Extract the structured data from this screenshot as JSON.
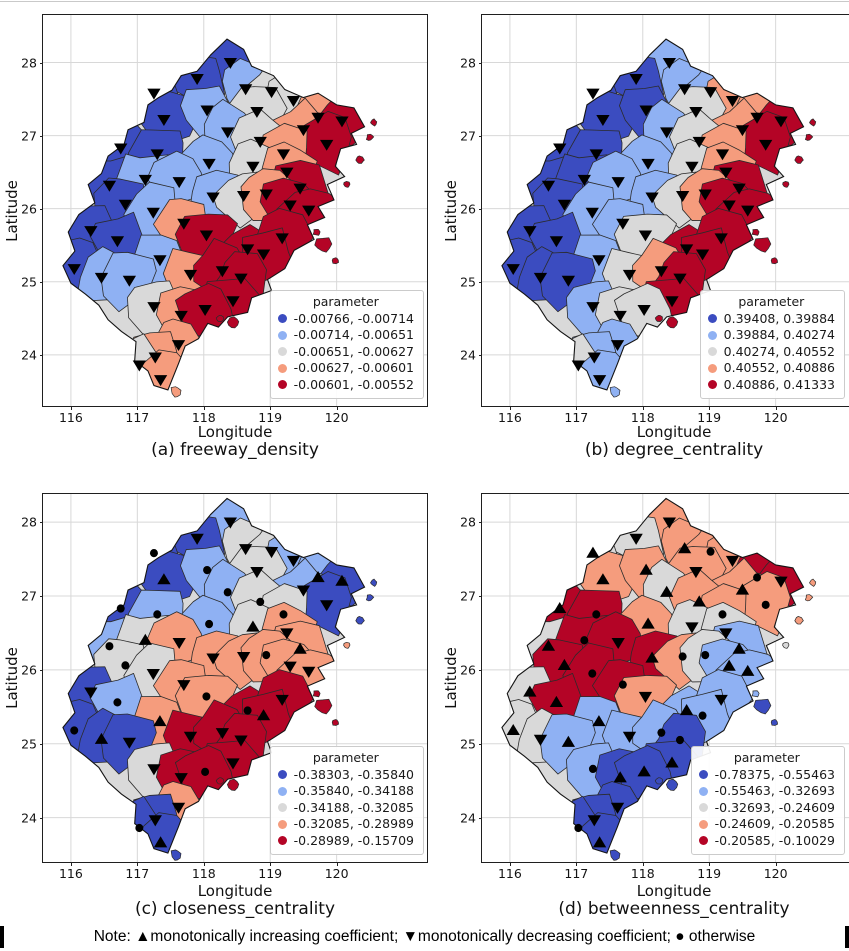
{
  "figure": {
    "xlabel": "Longitude",
    "ylabel": "Latitude",
    "xticks": [
      116,
      117,
      118,
      119,
      120
    ],
    "yticks": [
      28,
      27,
      26,
      25,
      24
    ],
    "class_colors": [
      "#3b4cc0",
      "#8fb1f3",
      "#d9d9d9",
      "#f59c7d",
      "#b40426"
    ],
    "marker_color": "#000000",
    "grid_color": "#d8d8d8",
    "boundary_color": "#2b2b2b",
    "outline_color": "#141414",
    "note": "Note: ▲monotonically increasing coefficient; ▼monotonically decreasing coefficient; ● otherwise",
    "marker_legend": [
      {
        "glyph": "▲",
        "meaning": "monotonically increasing coefficient"
      },
      {
        "glyph": "▼",
        "meaning": "monotonically decreasing coefficient"
      },
      {
        "glyph": "●",
        "meaning": "otherwise"
      }
    ]
  },
  "map": {
    "outline": [
      [
        118.1,
        28.1
      ],
      [
        118.35,
        28.32
      ],
      [
        118.6,
        28.18
      ],
      [
        118.72,
        27.95
      ],
      [
        119.05,
        27.82
      ],
      [
        119.22,
        27.63
      ],
      [
        119.5,
        27.52
      ],
      [
        119.72,
        27.58
      ],
      [
        120.0,
        27.42
      ],
      [
        120.26,
        27.38
      ],
      [
        120.42,
        27.12
      ],
      [
        120.22,
        27.03
      ],
      [
        120.3,
        26.88
      ],
      [
        120.06,
        26.82
      ],
      [
        119.98,
        26.58
      ],
      [
        120.12,
        26.44
      ],
      [
        119.86,
        26.33
      ],
      [
        119.96,
        26.12
      ],
      [
        119.72,
        26.03
      ],
      [
        119.82,
        25.88
      ],
      [
        119.56,
        25.78
      ],
      [
        119.66,
        25.58
      ],
      [
        119.36,
        25.43
      ],
      [
        119.22,
        25.18
      ],
      [
        118.96,
        25.03
      ],
      [
        119.02,
        24.88
      ],
      [
        118.72,
        24.78
      ],
      [
        118.66,
        24.58
      ],
      [
        118.36,
        24.52
      ],
      [
        118.22,
        24.38
      ],
      [
        118.06,
        24.43
      ],
      [
        117.92,
        24.22
      ],
      [
        117.72,
        24.12
      ],
      [
        117.62,
        23.88
      ],
      [
        117.46,
        23.52
      ],
      [
        117.25,
        23.58
      ],
      [
        117.16,
        23.78
      ],
      [
        116.96,
        23.92
      ],
      [
        116.98,
        24.18
      ],
      [
        116.76,
        24.32
      ],
      [
        116.56,
        24.48
      ],
      [
        116.42,
        24.68
      ],
      [
        116.22,
        24.83
      ],
      [
        116.0,
        24.98
      ],
      [
        115.88,
        25.22
      ],
      [
        116.06,
        25.42
      ],
      [
        115.96,
        25.68
      ],
      [
        116.12,
        25.92
      ],
      [
        116.36,
        26.08
      ],
      [
        116.26,
        26.33
      ],
      [
        116.46,
        26.48
      ],
      [
        116.56,
        26.72
      ],
      [
        116.8,
        26.88
      ],
      [
        116.86,
        27.08
      ],
      [
        117.1,
        27.18
      ],
      [
        117.16,
        27.42
      ],
      [
        117.32,
        27.52
      ],
      [
        117.52,
        27.62
      ],
      [
        117.66,
        27.82
      ],
      [
        117.9,
        27.88
      ]
    ],
    "centroids": [
      [
        118.4,
        28.0
      ],
      [
        117.9,
        27.78
      ],
      [
        117.25,
        27.58
      ],
      [
        118.63,
        27.64
      ],
      [
        119.02,
        27.6
      ],
      [
        119.35,
        27.48
      ],
      [
        117.4,
        27.22
      ],
      [
        118.05,
        27.35
      ],
      [
        118.8,
        27.33
      ],
      [
        119.72,
        27.25
      ],
      [
        120.08,
        27.2
      ],
      [
        119.5,
        27.08
      ],
      [
        118.36,
        27.05
      ],
      [
        118.85,
        26.92
      ],
      [
        116.75,
        26.83
      ],
      [
        117.3,
        26.75
      ],
      [
        119.85,
        26.88
      ],
      [
        119.2,
        26.75
      ],
      [
        118.08,
        26.62
      ],
      [
        118.74,
        26.58
      ],
      [
        116.58,
        26.32
      ],
      [
        117.12,
        26.4
      ],
      [
        117.63,
        26.37
      ],
      [
        119.25,
        26.5
      ],
      [
        119.45,
        26.28
      ],
      [
        116.82,
        26.06
      ],
      [
        117.24,
        25.95
      ],
      [
        118.14,
        26.16
      ],
      [
        118.6,
        26.18
      ],
      [
        118.94,
        26.2
      ],
      [
        119.3,
        26.05
      ],
      [
        119.58,
        25.98
      ],
      [
        116.3,
        25.7
      ],
      [
        117.7,
        25.8
      ],
      [
        118.04,
        25.64
      ],
      [
        118.66,
        25.45
      ],
      [
        119.18,
        25.6
      ],
      [
        116.7,
        25.56
      ],
      [
        117.34,
        25.3
      ],
      [
        117.8,
        25.1
      ],
      [
        116.05,
        25.18
      ],
      [
        116.46,
        25.06
      ],
      [
        116.88,
        25.02
      ],
      [
        118.9,
        25.38
      ],
      [
        118.28,
        25.15
      ],
      [
        118.56,
        25.05
      ],
      [
        118.44,
        24.74
      ],
      [
        117.25,
        24.66
      ],
      [
        117.66,
        24.54
      ],
      [
        118.02,
        24.62
      ],
      [
        117.62,
        24.14
      ],
      [
        117.27,
        23.97
      ],
      [
        117.03,
        23.86
      ],
      [
        117.35,
        23.66
      ]
    ],
    "islands": [
      [
        119.8,
        25.5,
        0.1
      ],
      [
        120.35,
        26.66,
        0.055
      ],
      [
        120.5,
        26.98,
        0.045
      ],
      [
        118.45,
        24.44,
        0.075
      ],
      [
        118.24,
        24.5,
        0.045
      ],
      [
        117.58,
        23.5,
        0.065
      ],
      [
        119.98,
        25.28,
        0.04
      ],
      [
        120.15,
        26.33,
        0.04
      ],
      [
        119.7,
        25.68,
        0.045
      ],
      [
        120.56,
        27.18,
        0.04
      ]
    ]
  },
  "chart_data": [
    {
      "type": "choropleth_map",
      "id": "a",
      "title": "(a) freeway_density",
      "xlabel": "Longitude",
      "ylabel": "Latitude",
      "xticks": [
        116,
        117,
        118,
        119,
        120
      ],
      "yticks": [
        28,
        27,
        26,
        25,
        24
      ],
      "xlim": [
        115.58,
        121.36
      ],
      "ylim": [
        23.3,
        28.65
      ],
      "legend_title": "parameter",
      "classes": [
        {
          "label": "-0.00766, -0.00714",
          "color_index": 0
        },
        {
          "label": "-0.00714, -0.00651",
          "color_index": 1
        },
        {
          "label": "-0.00651, -0.00627",
          "color_index": 2
        },
        {
          "label": "-0.00627, -0.00601",
          "color_index": 3
        },
        {
          "label": "-0.00601, -0.00552",
          "color_index": 4
        }
      ],
      "region_class_index": [
        0,
        0,
        0,
        1,
        2,
        2,
        0,
        1,
        2,
        3,
        4,
        3,
        1,
        2,
        0,
        0,
        4,
        3,
        1,
        2,
        0,
        1,
        1,
        3,
        4,
        0,
        1,
        1,
        2,
        3,
        4,
        4,
        0,
        3,
        4,
        4,
        4,
        0,
        1,
        3,
        0,
        1,
        1,
        4,
        4,
        4,
        4,
        2,
        3,
        4,
        3,
        3,
        2,
        3
      ],
      "region_markers": "dddddddddddddddddddddddddddddddddddddddddddddddddddddd",
      "island_class_index": [
        4,
        4,
        4,
        4,
        4,
        3,
        4,
        4,
        4,
        4
      ]
    },
    {
      "type": "choropleth_map",
      "id": "b",
      "title": "(b) degree_centrality",
      "xlabel": "Longitude",
      "ylabel": "Latitude",
      "xticks": [
        116,
        117,
        118,
        119,
        120
      ],
      "yticks": [
        28,
        27,
        26,
        25,
        24
      ],
      "xlim": [
        115.58,
        121.36
      ],
      "ylim": [
        23.3,
        28.65
      ],
      "legend_title": "parameter",
      "classes": [
        {
          "label": "0.39408, 0.39884",
          "color_index": 0
        },
        {
          "label": "0.39884, 0.40274",
          "color_index": 1
        },
        {
          "label": "0.40274, 0.40552",
          "color_index": 2
        },
        {
          "label": "0.40552, 0.40886",
          "color_index": 3
        },
        {
          "label": "0.40886, 0.41333",
          "color_index": 4
        }
      ],
      "region_class_index": [
        1,
        0,
        0,
        1,
        1,
        3,
        0,
        0,
        2,
        3,
        4,
        3,
        1,
        2,
        0,
        0,
        4,
        3,
        1,
        2,
        0,
        0,
        1,
        3,
        4,
        0,
        1,
        1,
        2,
        3,
        4,
        4,
        0,
        1,
        2,
        4,
        4,
        0,
        1,
        2,
        0,
        0,
        0,
        4,
        3,
        4,
        4,
        1,
        2,
        2,
        1,
        1,
        2,
        1
      ],
      "region_markers": "dddddddddddddddddddddddddddddddddddddddddddddddddddddd",
      "island_class_index": [
        4,
        4,
        4,
        4,
        4,
        1,
        4,
        4,
        4,
        4
      ]
    },
    {
      "type": "choropleth_map",
      "id": "c",
      "title": "(c) closeness_centrality",
      "xlabel": "Longitude",
      "ylabel": "Latitude",
      "xticks": [
        116,
        117,
        118,
        119,
        120
      ],
      "yticks": [
        28,
        27,
        26,
        25,
        24
      ],
      "xlim": [
        115.58,
        121.36
      ],
      "ylim": [
        23.4,
        28.38
      ],
      "legend_title": "parameter",
      "classes": [
        {
          "label": "-0.38303, -0.35840",
          "color_index": 0
        },
        {
          "label": "-0.35840, -0.34188",
          "color_index": 1
        },
        {
          "label": "-0.34188, -0.32085",
          "color_index": 2
        },
        {
          "label": "-0.32085, -0.28989",
          "color_index": 3
        },
        {
          "label": "-0.28989, -0.15709",
          "color_index": 4
        }
      ],
      "region_class_index": [
        1,
        0,
        0,
        2,
        2,
        1,
        0,
        1,
        2,
        1,
        0,
        1,
        1,
        2,
        0,
        1,
        0,
        2,
        1,
        2,
        1,
        2,
        3,
        3,
        3,
        2,
        2,
        3,
        3,
        3,
        3,
        3,
        0,
        3,
        3,
        4,
        4,
        1,
        3,
        4,
        0,
        0,
        0,
        4,
        4,
        4,
        4,
        2,
        4,
        4,
        3,
        0,
        0,
        0
      ],
      "region_markers": "ddoddduoduudoooodoououdduodddoddddoodoudoududddddoddou",
      "island_class_index": [
        4,
        0,
        0,
        4,
        4,
        0,
        4,
        3,
        4,
        0
      ]
    },
    {
      "type": "choropleth_map",
      "id": "d",
      "title": "(d) betweenness_centrality",
      "xlabel": "Longitude",
      "ylabel": "Latitude",
      "xticks": [
        116,
        117,
        118,
        119,
        120
      ],
      "yticks": [
        28,
        27,
        26,
        25,
        24
      ],
      "xlim": [
        115.58,
        121.36
      ],
      "ylim": [
        23.4,
        28.38
      ],
      "legend_title": "parameter",
      "classes": [
        {
          "label": "-0.78375, -0.55463",
          "color_index": 0
        },
        {
          "label": "-0.55463, -0.32693",
          "color_index": 1
        },
        {
          "label": "-0.32693, -0.24609",
          "color_index": 2
        },
        {
          "label": "-0.24609, -0.20585",
          "color_index": 3
        },
        {
          "label": "-0.20585, -0.10029",
          "color_index": 4
        }
      ],
      "region_class_index": [
        3,
        2,
        2,
        3,
        3,
        3,
        3,
        3,
        3,
        4,
        4,
        3,
        2,
        3,
        4,
        4,
        3,
        3,
        3,
        2,
        2,
        4,
        4,
        2,
        1,
        4,
        4,
        4,
        3,
        2,
        1,
        1,
        2,
        4,
        3,
        1,
        1,
        4,
        1,
        1,
        2,
        2,
        1,
        1,
        1,
        0,
        0,
        1,
        0,
        0,
        0,
        0,
        0,
        0
      ],
      "region_markers": "dduuoduudoduuuuooouduodduuouoouuuoduduududuooououuddou",
      "island_class_index": [
        0,
        3,
        3,
        0,
        0,
        0,
        0,
        2,
        1,
        3
      ]
    }
  ]
}
